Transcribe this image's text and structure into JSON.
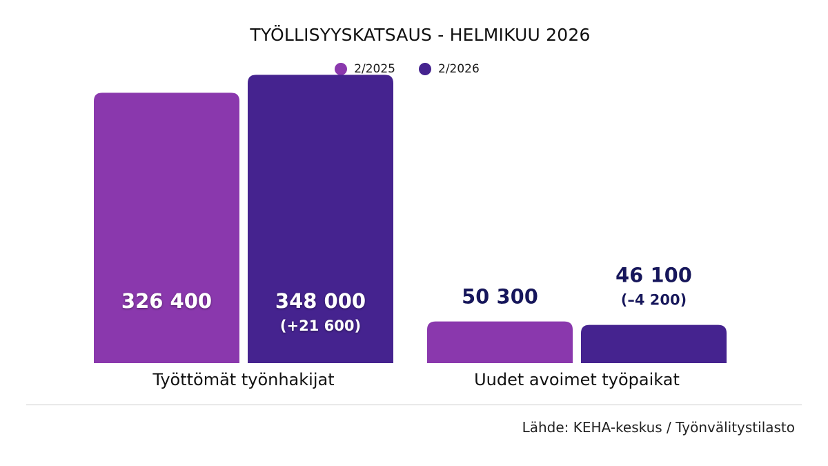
{
  "chart_data": {
    "type": "bar",
    "title": "TYÖLLISYYSKATSAUS - HELMIKUU 2026",
    "categories": [
      "Työttömät työnhakijat",
      "Uudet avoimet työpaikat"
    ],
    "series": [
      {
        "name": "2/2025",
        "color": "#8a38ad",
        "values": [
          326400,
          50300
        ],
        "labels": [
          "326 400",
          "50 300"
        ],
        "change_labels": [
          "",
          ""
        ]
      },
      {
        "name": "2/2026",
        "color": "#45238f",
        "values": [
          348000,
          46100
        ],
        "labels": [
          "348 000",
          "46 100"
        ],
        "change_labels": [
          "(+21 600)",
          "(–4 200)"
        ]
      }
    ],
    "ylim": [
      0,
      400000
    ],
    "grid": false,
    "legend_position": "top-center",
    "source": "Lähde: KEHA-keskus / Työnvälitystilasto"
  }
}
